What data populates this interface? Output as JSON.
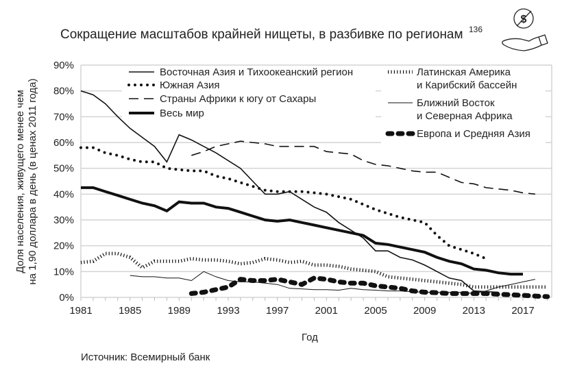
{
  "chart_data": {
    "type": "line",
    "title": "Сокращение масштабов крайней нищеты, в разбивке по регионам",
    "title_superscript": "136",
    "xlabel": "Год",
    "ylabel_lines": [
      "Доля населения, живущего менее чем",
      "на 1,90 доллара в день (в ценах 2011 года)"
    ],
    "source": "Источник: Всемирный банк",
    "xlim": [
      1981,
      2019
    ],
    "ylim": [
      0,
      90
    ],
    "x_ticks": [
      "1981",
      "1985",
      "1989",
      "1993",
      "1997",
      "2001",
      "2005",
      "2009",
      "2013",
      "2017"
    ],
    "y_ticks": [
      "0%",
      "10%",
      "20%",
      "30%",
      "40%",
      "50%",
      "60%",
      "70%",
      "80%",
      "90%"
    ],
    "grid": true,
    "legend_placement": "top",
    "series": [
      {
        "name": "Восточная Азия и Тихоокеанский регион",
        "style": "thin-solid",
        "x0": 1981,
        "values": [
          80,
          78.5,
          75,
          70,
          65.5,
          62,
          58.5,
          52.5,
          63,
          61,
          58.5,
          56,
          53,
          50,
          45,
          40,
          40,
          41,
          38,
          35,
          33,
          29,
          26,
          23,
          18,
          18,
          15.5,
          14.5,
          12.5,
          10,
          7.5,
          6.5,
          2.5,
          2.2,
          2
        ]
      },
      {
        "name": "Южная Азия",
        "style": "dotted",
        "x0": 1981,
        "values": [
          58,
          58,
          56,
          55,
          53.5,
          52.5,
          52.5,
          50,
          49.5,
          49,
          49,
          47,
          46,
          44.5,
          43,
          41.5,
          41,
          41,
          41,
          40.5,
          40,
          39,
          38,
          36,
          34,
          32.5,
          31,
          30,
          29,
          24,
          20,
          18.5,
          17,
          15
        ]
      },
      {
        "name": "Страны Африки к югу от Сахары",
        "style": "dashed",
        "x0": 1990,
        "values": [
          55,
          56.5,
          58.5,
          59.5,
          60.5,
          60,
          59.5,
          58.5,
          58.5,
          58.5,
          58.5,
          56.5,
          56,
          55.5,
          53,
          51.5,
          51,
          50,
          49,
          48.5,
          48.5,
          46.5,
          44.5,
          44,
          42.5,
          42,
          41.5,
          40.5,
          40
        ]
      },
      {
        "name": "Весь мир",
        "style": "thick-solid",
        "x0": 1981,
        "values": [
          42.5,
          42.5,
          41,
          39.5,
          38,
          36.5,
          35.5,
          33.5,
          37,
          36.5,
          36.5,
          35,
          34.5,
          33,
          31.5,
          30,
          29.5,
          30,
          29,
          28,
          27,
          26,
          25,
          24,
          21,
          20.5,
          19.5,
          18.5,
          17.5,
          15.5,
          14,
          13,
          11,
          10.5,
          9.5,
          9,
          9
        ]
      },
      {
        "name_lines": [
          "Латинская Америка",
          "и Карибский бассейн"
        ],
        "name": "Латинская Америка и Карибский бассейн",
        "style": "ticked",
        "x0": 1981,
        "values": [
          13.5,
          14,
          17,
          17,
          15.5,
          11.5,
          14,
          14,
          14,
          15,
          14.5,
          14.5,
          14,
          13,
          13.5,
          15,
          14.5,
          13.5,
          14,
          12.5,
          12.5,
          12,
          11,
          10.5,
          10,
          8,
          7.5,
          7,
          6.5,
          6,
          5.5,
          5,
          4,
          4,
          4,
          4,
          4,
          4,
          4
        ]
      },
      {
        "name_lines": [
          "Ближний Восток",
          "и Северная Африка"
        ],
        "name": "Ближний Восток и Северная Африка",
        "style": "hairline",
        "x0": 1985,
        "values": [
          8.5,
          8,
          8,
          7.5,
          7.5,
          6.5,
          10,
          8,
          6.5,
          6,
          6,
          5.5,
          5,
          3.5,
          3.3,
          3,
          3,
          2.8,
          3.5,
          3,
          2.8,
          2.5,
          2.5,
          2.2,
          2,
          2,
          2,
          2,
          1.5,
          2.5,
          4,
          5,
          6,
          7
        ]
      },
      {
        "name": "Европа и Средняя Азия",
        "style": "heavy-dashed",
        "x0": 1990,
        "values": [
          1.5,
          2,
          3,
          4,
          7,
          6.5,
          6.5,
          7,
          6,
          5,
          7.5,
          7,
          6,
          5.5,
          5.5,
          4.5,
          4,
          3.5,
          2.5,
          2,
          1.8,
          1.5,
          1.5,
          1.5,
          1.5,
          1.2,
          1,
          0.8,
          0.5,
          0.3
        ]
      }
    ]
  },
  "icon": "hand-with-crossed-dollar-icon"
}
